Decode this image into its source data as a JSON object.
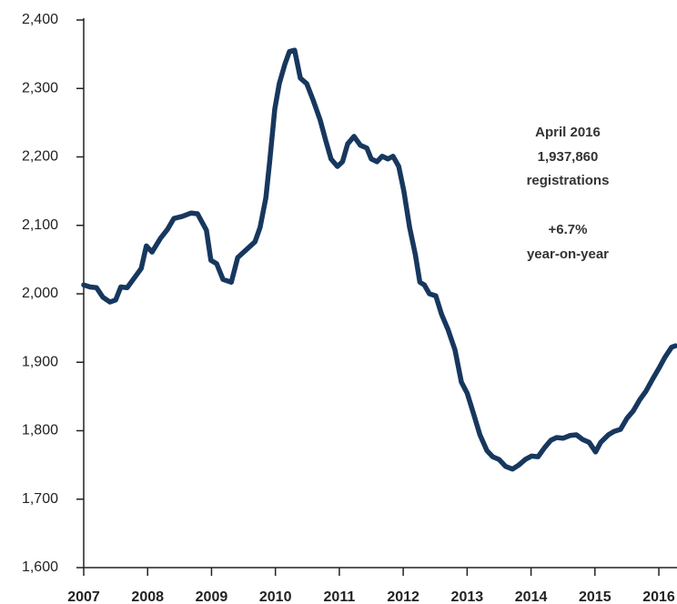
{
  "chart_data": {
    "type": "line",
    "annotation": [
      "April 2016",
      "1,937,860",
      "registrations",
      "+6.7%",
      "year-on-year"
    ],
    "xlim": [
      2007,
      2016.27
    ],
    "xticks": [
      2007,
      2008,
      2009,
      2010,
      2011,
      2012,
      2013,
      2014,
      2015,
      2016
    ],
    "ylim": [
      1600,
      2400
    ],
    "yticks": [
      {
        "value": 1600,
        "label": "1,600"
      },
      {
        "value": 1700,
        "label": "1,700"
      },
      {
        "value": 1800,
        "label": "1,800"
      },
      {
        "value": 1900,
        "label": "1,900"
      },
      {
        "value": 2000,
        "label": "2,000"
      },
      {
        "value": 2100,
        "label": "2,100"
      },
      {
        "value": 2200,
        "label": "2,200"
      },
      {
        "value": 2300,
        "label": "2,300"
      },
      {
        "value": 2400,
        "label": "2,400"
      }
    ],
    "color": "#17375e",
    "x": [
      2007.0,
      2007.1,
      2007.2,
      2007.3,
      2007.41,
      2007.5,
      2007.58,
      2007.68,
      2007.83,
      2007.9,
      2007.98,
      2008.07,
      2008.2,
      2008.31,
      2008.41,
      2008.54,
      2008.68,
      2008.78,
      2008.92,
      2008.99,
      2009.08,
      2009.18,
      2009.31,
      2009.41,
      2009.54,
      2009.68,
      2009.76,
      2009.85,
      2009.91,
      2009.99,
      2010.06,
      2010.15,
      2010.22,
      2010.3,
      2010.39,
      2010.49,
      2010.59,
      2010.7,
      2010.79,
      2010.87,
      2010.97,
      2011.05,
      2011.13,
      2011.23,
      2011.33,
      2011.43,
      2011.5,
      2011.59,
      2011.67,
      2011.76,
      2011.84,
      2011.93,
      2012.01,
      2012.1,
      2012.19,
      2012.26,
      2012.33,
      2012.41,
      2012.51,
      2012.6,
      2012.7,
      2012.81,
      2012.91,
      2013.0,
      2013.1,
      2013.2,
      2013.31,
      2013.4,
      2013.5,
      2013.6,
      2013.71,
      2013.81,
      2013.91,
      2014.01,
      2014.11,
      2014.21,
      2014.31,
      2014.4,
      2014.5,
      2014.61,
      2014.71,
      2014.81,
      2014.91,
      2015.01,
      2015.09,
      2015.21,
      2015.3,
      2015.4,
      2015.5,
      2015.6,
      2015.7,
      2015.8,
      2015.9,
      2016.0,
      2016.1,
      2016.2,
      2016.26
    ],
    "values": [
      2013,
      2010,
      2009,
      1995,
      1988,
      1991,
      2010,
      2009,
      2028,
      2037,
      2070,
      2061,
      2081,
      2094,
      2110,
      2113,
      2118,
      2117,
      2093,
      2049,
      2044,
      2021,
      2017,
      2053,
      2064,
      2076,
      2097,
      2140,
      2193,
      2270,
      2307,
      2336,
      2354,
      2356,
      2315,
      2307,
      2283,
      2254,
      2223,
      2197,
      2186,
      2193,
      2219,
      2230,
      2217,
      2213,
      2197,
      2193,
      2201,
      2197,
      2201,
      2186,
      2150,
      2097,
      2057,
      2017,
      2013,
      2000,
      1997,
      1970,
      1948,
      1918,
      1871,
      1855,
      1825,
      1794,
      1771,
      1762,
      1758,
      1748,
      1744,
      1750,
      1758,
      1763,
      1762,
      1775,
      1786,
      1790,
      1789,
      1793,
      1794,
      1787,
      1783,
      1769,
      1783,
      1794,
      1799,
      1802,
      1818,
      1829,
      1845,
      1858,
      1875,
      1891,
      1908,
      1922,
      1924
    ]
  }
}
